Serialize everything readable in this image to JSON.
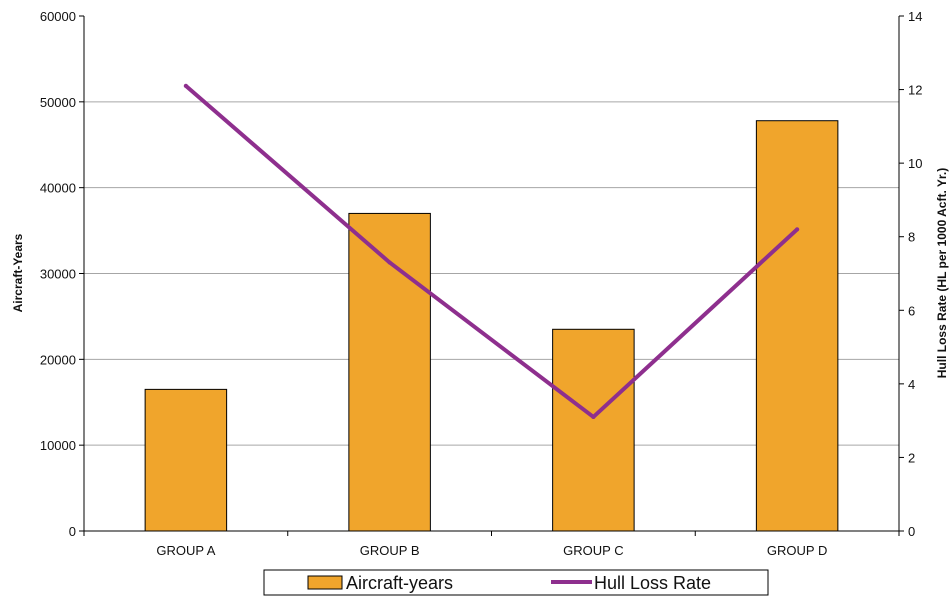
{
  "chart_data": {
    "type": "bar",
    "categories": [
      "GROUP A",
      "GROUP B",
      "GROUP C",
      "GROUP D"
    ],
    "series": [
      {
        "name": "Aircraft-years",
        "type": "bar",
        "axis": "left",
        "color": "#f0a52c",
        "values": [
          16500,
          37000,
          23500,
          47800
        ]
      },
      {
        "name": "Hull Loss Rate",
        "type": "line",
        "axis": "right",
        "color": "#8e2f8e",
        "values": [
          12.1,
          7.3,
          3.1,
          8.2
        ]
      }
    ],
    "ylabel": "Aircraft-Years",
    "y2label": "Hull Loss Rate (HL per 1000 Acft. Yr.)",
    "ylim": [
      0,
      60000
    ],
    "yticks": [
      "0",
      "10000",
      "20000",
      "30000",
      "40000",
      "50000",
      "60000"
    ],
    "y2lim": [
      0,
      14
    ],
    "y2ticks": [
      "0",
      "2",
      "4",
      "6",
      "8",
      "10",
      "12",
      "14"
    ],
    "grid": true,
    "legend_position": "bottom"
  }
}
